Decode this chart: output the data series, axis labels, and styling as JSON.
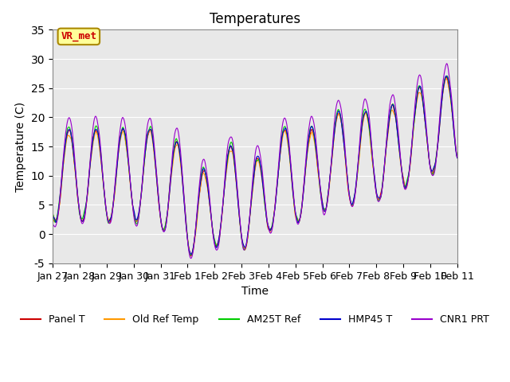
{
  "title": "Temperatures",
  "xlabel": "Time",
  "ylabel": "Temperature (C)",
  "ylim": [
    -5,
    35
  ],
  "series_colors": {
    "Panel T": "#cc0000",
    "Old Ref Temp": "#ff9900",
    "AM25T Ref": "#00cc00",
    "HMP45 T": "#0000cc",
    "CNR1 PRT": "#9900cc"
  },
  "annotation_text": "VR_met",
  "annotation_color": "#cc0000",
  "annotation_bg": "#ffff99",
  "background_color": "#e8e8e8",
  "grid_color": "#ffffff",
  "tick_labels": [
    "Jan 27",
    "Jan 28",
    "Jan 29",
    "Jan 30",
    "Jan 31",
    "Feb 1",
    "Feb 2",
    "Feb 3",
    "Feb 4",
    "Feb 5",
    "Feb 6",
    "Feb 7",
    "Feb 8",
    "Feb 9",
    "Feb 10",
    "Feb 11"
  ],
  "title_fontsize": 12,
  "axis_fontsize": 10,
  "legend_fontsize": 9
}
